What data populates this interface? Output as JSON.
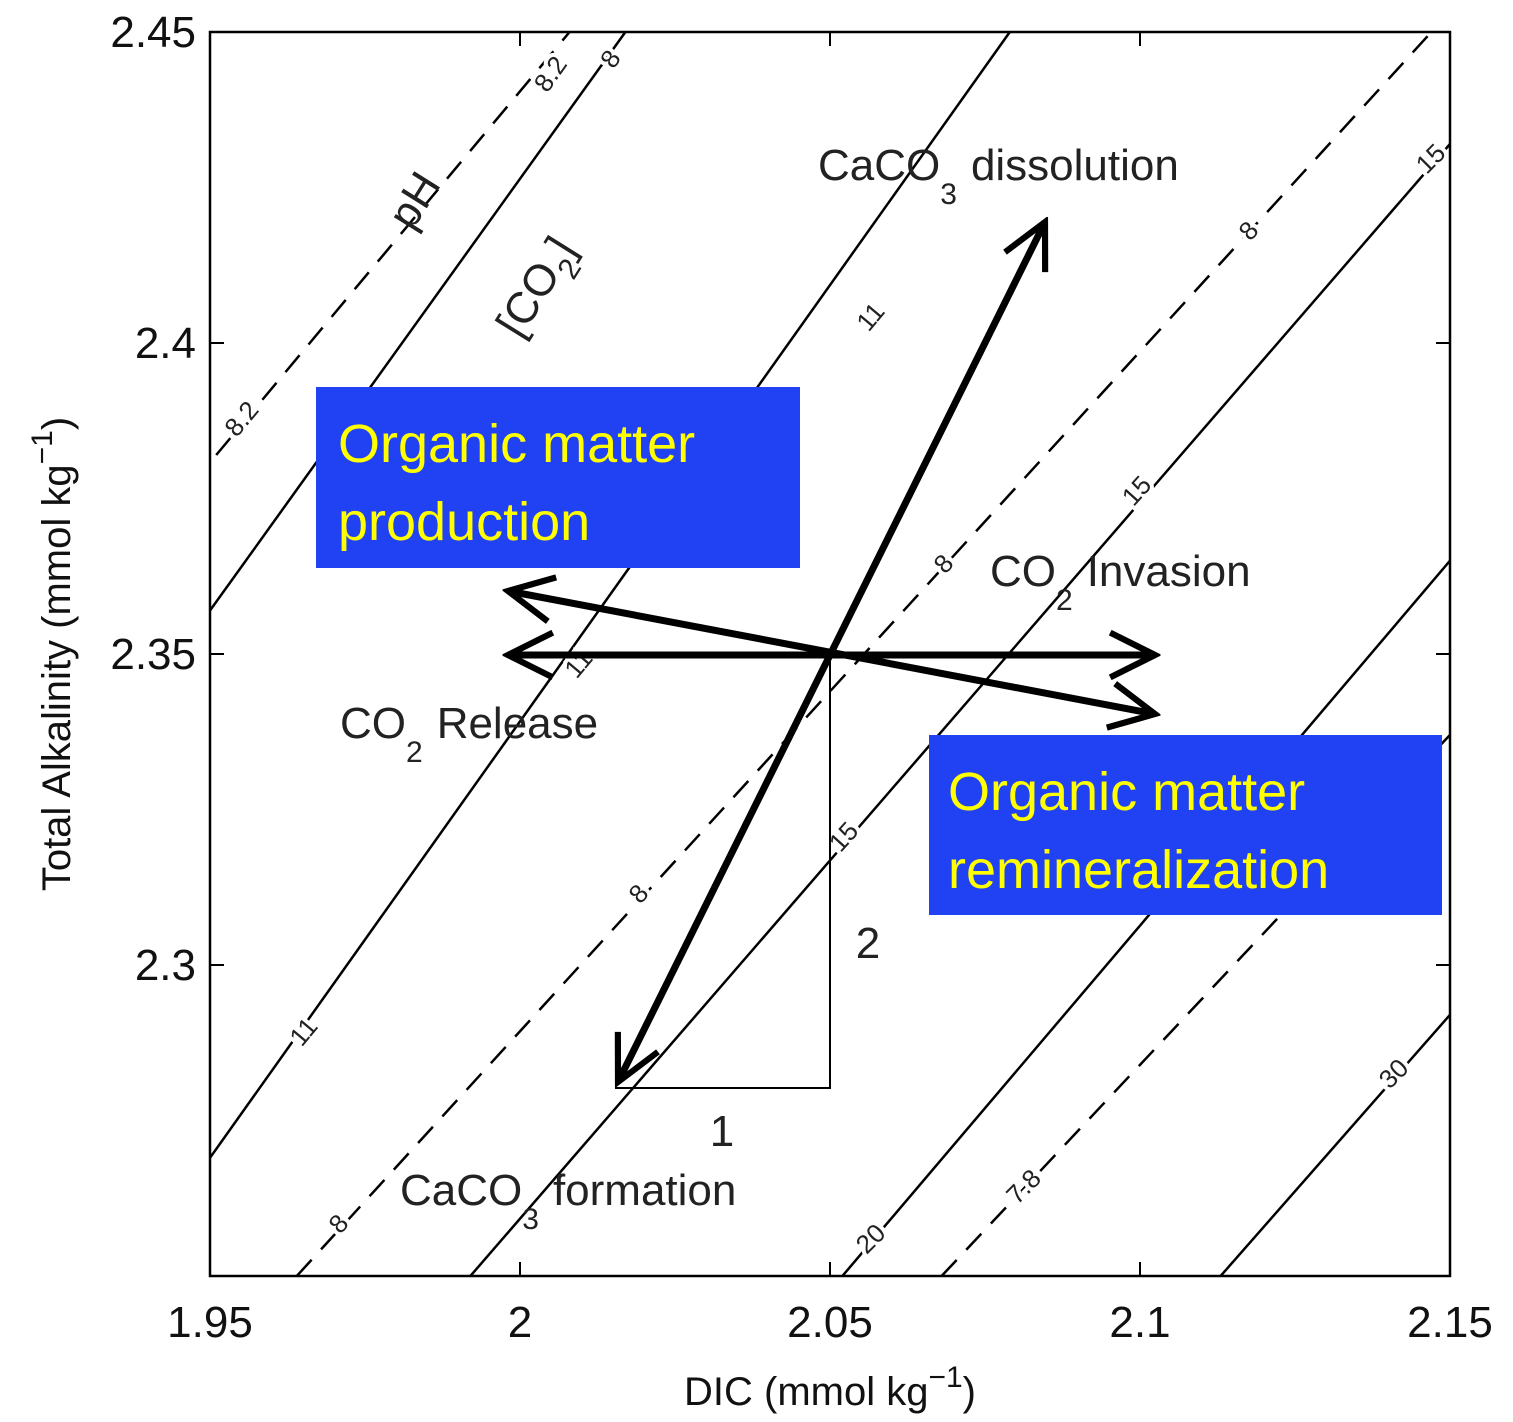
{
  "chart_data": {
    "type": "line",
    "xlabel": {
      "main": "DIC (mmol kg",
      "sup": "−1",
      "close": ")"
    },
    "ylabel": {
      "main": "Total Alkalinity (mmol kg",
      "sup": "−1",
      "close": ")"
    },
    "xlim": [
      1.95,
      2.15
    ],
    "xticks": [
      1.95,
      2,
      2.05,
      2.1,
      2.15
    ],
    "ylim": [
      2.25,
      2.45
    ],
    "yticks": [
      2.3,
      2.35,
      2.4,
      2.45
    ],
    "series": [
      {
        "x": [
          1.95,
          2.017
        ],
        "values": [
          2.357,
          2.45
        ],
        "color": "#000000",
        "dashed": false
      },
      {
        "x": [
          1.95,
          2.079
        ],
        "values": [
          2.269,
          2.45
        ],
        "color": "#000000",
        "dashed": false
      },
      {
        "x": [
          1.992,
          2.15
        ],
        "values": [
          2.25,
          2.432
        ],
        "color": "#000000",
        "dashed": false
      },
      {
        "x": [
          2.052,
          2.15
        ],
        "values": [
          2.25,
          2.365
        ],
        "color": "#000000",
        "dashed": false
      },
      {
        "x": [
          2.113,
          2.15
        ],
        "values": [
          2.25,
          2.292
        ],
        "color": "#000000",
        "dashed": false
      },
      {
        "x": [
          1.951,
          2.008
        ],
        "values": [
          2.382,
          2.45
        ],
        "color": "#000000",
        "dashed": true
      },
      {
        "x": [
          1.964,
          2.147
        ],
        "values": [
          2.25,
          2.45
        ],
        "color": "#000000",
        "dashed": true
      },
      {
        "x": [
          2.068,
          2.15
        ],
        "values": [
          2.25,
          2.337
        ],
        "color": "#000000",
        "dashed": true
      }
    ],
    "contour_labels": [
      "8.2",
      "8",
      "8.2",
      "11",
      "8",
      "15",
      "15",
      "8",
      "11",
      "15",
      "8",
      "11",
      "8",
      "7.8",
      "20",
      "30"
    ],
    "annotations": {
      "ph": "pH",
      "co2": {
        "open": "[CO",
        "sub": "2",
        "close": "]"
      },
      "dissolution": {
        "main": "CaCO",
        "sub": "3",
        "rest": "dissolution"
      },
      "invasion": {
        "main": "CO",
        "sub": "2",
        "rest": "Invasion"
      },
      "release": {
        "main": "CO",
        "sub": "2",
        "rest": "Release"
      },
      "formation": {
        "main": "CaCO",
        "sub": "3",
        "rest": "formation"
      },
      "run": "1",
      "rise": "2"
    },
    "boxes": [
      [
        "Organic matter",
        "production"
      ],
      [
        "Organic matter",
        "remineralization"
      ]
    ]
  }
}
